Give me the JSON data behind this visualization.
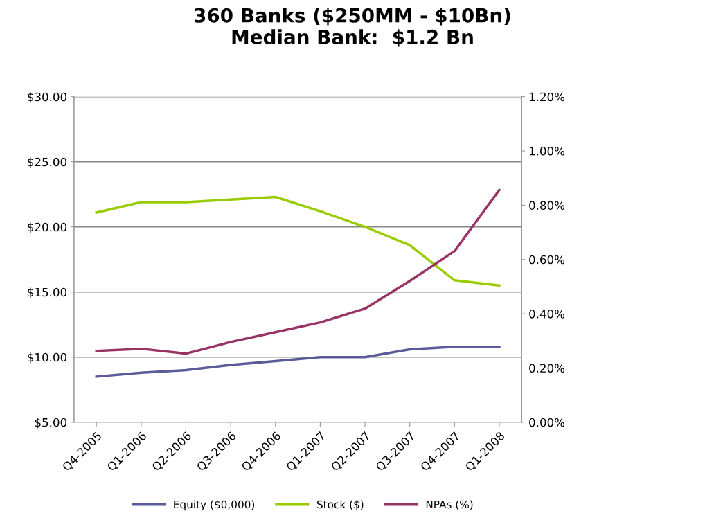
{
  "chart_data": {
    "type": "line",
    "title": "360 Banks ($250MM - $10Bn)\nMedian Bank:  $1.2 Bn",
    "categories": [
      "Q4-2005",
      "Q1-2006",
      "Q2-2006",
      "Q3-2006",
      "Q4-2006",
      "Q1-2007",
      "Q2-2007",
      "Q3-2007",
      "Q4-2007",
      "Q1-2008"
    ],
    "series": [
      {
        "name": "Equity ($0,000)",
        "color": "#5b5b9b",
        "values": [
          8.5,
          8.8,
          9.0,
          9.4,
          9.7,
          10.0,
          10.0,
          10.6,
          10.8,
          10.8
        ]
      },
      {
        "name": "Stock ($)",
        "color": "#99cc00",
        "values": [
          21.1,
          21.9,
          21.9,
          22.1,
          22.3,
          21.2,
          20.0,
          18.6,
          15.9,
          15.5
        ]
      },
      {
        "name": "NPAs (%)",
        "color": "#993366",
        "axis": "y2",
        "values": [
          0.263,
          0.271,
          0.253,
          0.296,
          0.332,
          0.368,
          0.419,
          0.521,
          0.631,
          0.856
        ]
      }
    ],
    "ylim": [
      5,
      30
    ],
    "yticks": [
      {
        "value": 5,
        "label": "$5.00"
      },
      {
        "value": 10,
        "label": "$10.00"
      },
      {
        "value": 15,
        "label": "$15.00"
      },
      {
        "value": 20,
        "label": "$20.00"
      },
      {
        "value": 25,
        "label": "$25.00"
      },
      {
        "value": 30,
        "label": "$30.00"
      }
    ],
    "y2lim": [
      0,
      1.2
    ],
    "y2ticks": [
      {
        "value": 0,
        "label": "0.00%"
      },
      {
        "value": 0.2,
        "label": "0.20%"
      },
      {
        "value": 0.4,
        "label": "0.40%"
      },
      {
        "value": 0.6,
        "label": "0.60%"
      },
      {
        "value": 0.8,
        "label": "0.80%"
      },
      {
        "value": 1.0,
        "label": "1.00%"
      },
      {
        "value": 1.2,
        "label": "1.20%"
      }
    ],
    "grid": "y",
    "legend": "bottom",
    "marker": "none",
    "line_style": "solid"
  }
}
